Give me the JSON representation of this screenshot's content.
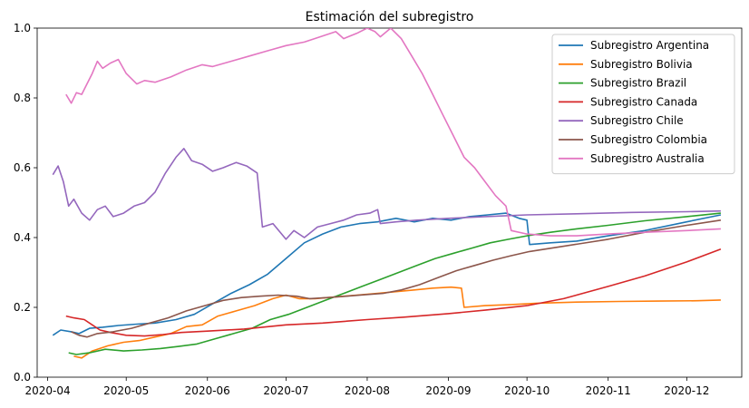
{
  "chart_data": {
    "type": "line",
    "title": "Estimación del subregistro",
    "xlabel": "",
    "ylabel": "",
    "ylim": [
      0,
      1.0
    ],
    "xlim": [
      "2020-03-28",
      "2020-12-22"
    ],
    "x_ticks": [
      "2020-04",
      "2020-05",
      "2020-06",
      "2020-07",
      "2020-08",
      "2020-09",
      "2020-10",
      "2020-11",
      "2020-12"
    ],
    "y_ticks": [
      0.0,
      0.2,
      0.4,
      0.6,
      0.8,
      1.0
    ],
    "y_tick_labels": [
      "0.0",
      "0.2",
      "0.4",
      "0.6",
      "0.8",
      "1.0"
    ],
    "grid": false,
    "legend_position": "top-right",
    "series": [
      {
        "name": "Subregistro Argentina",
        "color": "#1f77b4",
        "points": [
          [
            "2020-04-03",
            0.12
          ],
          [
            "2020-04-06",
            0.135
          ],
          [
            "2020-04-10",
            0.13
          ],
          [
            "2020-04-13",
            0.125
          ],
          [
            "2020-04-17",
            0.14
          ],
          [
            "2020-04-22",
            0.143
          ],
          [
            "2020-04-28",
            0.148
          ],
          [
            "2020-05-05",
            0.152
          ],
          [
            "2020-05-12",
            0.155
          ],
          [
            "2020-05-20",
            0.165
          ],
          [
            "2020-05-27",
            0.18
          ],
          [
            "2020-06-03",
            0.21
          ],
          [
            "2020-06-10",
            0.24
          ],
          [
            "2020-06-17",
            0.265
          ],
          [
            "2020-06-24",
            0.295
          ],
          [
            "2020-07-01",
            0.34
          ],
          [
            "2020-07-08",
            0.385
          ],
          [
            "2020-07-15",
            0.41
          ],
          [
            "2020-07-22",
            0.43
          ],
          [
            "2020-07-29",
            0.44
          ],
          [
            "2020-08-05",
            0.445
          ],
          [
            "2020-08-12",
            0.455
          ],
          [
            "2020-08-19",
            0.445
          ],
          [
            "2020-08-26",
            0.455
          ],
          [
            "2020-09-02",
            0.45
          ],
          [
            "2020-09-09",
            0.46
          ],
          [
            "2020-09-16",
            0.465
          ],
          [
            "2020-09-23",
            0.47
          ],
          [
            "2020-09-28",
            0.455
          ],
          [
            "2020-10-01",
            0.45
          ],
          [
            "2020-10-02",
            0.38
          ],
          [
            "2020-10-10",
            0.385
          ],
          [
            "2020-10-20",
            0.39
          ],
          [
            "2020-11-01",
            0.405
          ],
          [
            "2020-11-15",
            0.42
          ],
          [
            "2020-12-01",
            0.445
          ],
          [
            "2020-12-14",
            0.465
          ]
        ]
      },
      {
        "name": "Subregistro Bolivia",
        "color": "#ff7f0e",
        "points": [
          [
            "2020-04-11",
            0.06
          ],
          [
            "2020-04-14",
            0.055
          ],
          [
            "2020-04-18",
            0.075
          ],
          [
            "2020-04-24",
            0.09
          ],
          [
            "2020-04-30",
            0.1
          ],
          [
            "2020-05-06",
            0.105
          ],
          [
            "2020-05-12",
            0.115
          ],
          [
            "2020-05-18",
            0.125
          ],
          [
            "2020-05-24",
            0.145
          ],
          [
            "2020-05-30",
            0.15
          ],
          [
            "2020-06-05",
            0.175
          ],
          [
            "2020-06-12",
            0.19
          ],
          [
            "2020-06-19",
            0.205
          ],
          [
            "2020-06-26",
            0.225
          ],
          [
            "2020-07-01",
            0.235
          ],
          [
            "2020-07-06",
            0.225
          ],
          [
            "2020-07-12",
            0.225
          ],
          [
            "2020-07-20",
            0.23
          ],
          [
            "2020-07-28",
            0.235
          ],
          [
            "2020-08-05",
            0.24
          ],
          [
            "2020-08-12",
            0.245
          ],
          [
            "2020-08-19",
            0.25
          ],
          [
            "2020-08-26",
            0.255
          ],
          [
            "2020-09-02",
            0.258
          ],
          [
            "2020-09-06",
            0.255
          ],
          [
            "2020-09-07",
            0.2
          ],
          [
            "2020-09-15",
            0.205
          ],
          [
            "2020-09-25",
            0.208
          ],
          [
            "2020-10-05",
            0.212
          ],
          [
            "2020-10-20",
            0.215
          ],
          [
            "2020-11-05",
            0.217
          ],
          [
            "2020-11-20",
            0.218
          ],
          [
            "2020-12-05",
            0.219
          ],
          [
            "2020-12-14",
            0.221
          ]
        ]
      },
      {
        "name": "Subregistro Brazil",
        "color": "#2ca02c",
        "points": [
          [
            "2020-04-09",
            0.07
          ],
          [
            "2020-04-12",
            0.065
          ],
          [
            "2020-04-17",
            0.07
          ],
          [
            "2020-04-23",
            0.08
          ],
          [
            "2020-04-30",
            0.075
          ],
          [
            "2020-05-07",
            0.078
          ],
          [
            "2020-05-14",
            0.082
          ],
          [
            "2020-05-21",
            0.088
          ],
          [
            "2020-05-28",
            0.095
          ],
          [
            "2020-06-04",
            0.11
          ],
          [
            "2020-06-11",
            0.125
          ],
          [
            "2020-06-18",
            0.14
          ],
          [
            "2020-06-25",
            0.165
          ],
          [
            "2020-07-02",
            0.18
          ],
          [
            "2020-07-09",
            0.2
          ],
          [
            "2020-07-16",
            0.22
          ],
          [
            "2020-07-23",
            0.24
          ],
          [
            "2020-07-30",
            0.26
          ],
          [
            "2020-08-06",
            0.28
          ],
          [
            "2020-08-13",
            0.3
          ],
          [
            "2020-08-20",
            0.32
          ],
          [
            "2020-08-27",
            0.34
          ],
          [
            "2020-09-03",
            0.355
          ],
          [
            "2020-09-10",
            0.37
          ],
          [
            "2020-09-17",
            0.385
          ],
          [
            "2020-09-24",
            0.395
          ],
          [
            "2020-10-01",
            0.405
          ],
          [
            "2020-10-10",
            0.415
          ],
          [
            "2020-10-20",
            0.425
          ],
          [
            "2020-11-01",
            0.435
          ],
          [
            "2020-11-15",
            0.448
          ],
          [
            "2020-12-01",
            0.46
          ],
          [
            "2020-12-14",
            0.47
          ]
        ]
      },
      {
        "name": "Subregistro Canada",
        "color": "#d62728",
        "points": [
          [
            "2020-04-08",
            0.175
          ],
          [
            "2020-04-11",
            0.17
          ],
          [
            "2020-04-15",
            0.165
          ],
          [
            "2020-04-18",
            0.15
          ],
          [
            "2020-04-21",
            0.135
          ],
          [
            "2020-04-25",
            0.128
          ],
          [
            "2020-05-01",
            0.12
          ],
          [
            "2020-05-08",
            0.118
          ],
          [
            "2020-05-15",
            0.122
          ],
          [
            "2020-05-22",
            0.128
          ],
          [
            "2020-06-01",
            0.132
          ],
          [
            "2020-06-15",
            0.138
          ],
          [
            "2020-07-01",
            0.15
          ],
          [
            "2020-07-15",
            0.155
          ],
          [
            "2020-08-01",
            0.165
          ],
          [
            "2020-08-15",
            0.172
          ],
          [
            "2020-09-01",
            0.182
          ],
          [
            "2020-09-15",
            0.192
          ],
          [
            "2020-10-01",
            0.205
          ],
          [
            "2020-10-15",
            0.225
          ],
          [
            "2020-11-01",
            0.26
          ],
          [
            "2020-11-15",
            0.29
          ],
          [
            "2020-12-01",
            0.33
          ],
          [
            "2020-12-14",
            0.367
          ]
        ]
      },
      {
        "name": "Subregistro Chile",
        "color": "#9467bd",
        "points": [
          [
            "2020-04-03",
            0.58
          ],
          [
            "2020-04-05",
            0.605
          ],
          [
            "2020-04-07",
            0.56
          ],
          [
            "2020-04-09",
            0.49
          ],
          [
            "2020-04-11",
            0.51
          ],
          [
            "2020-04-14",
            0.47
          ],
          [
            "2020-04-17",
            0.45
          ],
          [
            "2020-04-20",
            0.48
          ],
          [
            "2020-04-23",
            0.49
          ],
          [
            "2020-04-26",
            0.46
          ],
          [
            "2020-04-30",
            0.47
          ],
          [
            "2020-05-04",
            0.49
          ],
          [
            "2020-05-08",
            0.5
          ],
          [
            "2020-05-12",
            0.53
          ],
          [
            "2020-05-16",
            0.585
          ],
          [
            "2020-05-20",
            0.63
          ],
          [
            "2020-05-23",
            0.655
          ],
          [
            "2020-05-26",
            0.62
          ],
          [
            "2020-05-30",
            0.61
          ],
          [
            "2020-06-03",
            0.59
          ],
          [
            "2020-06-07",
            0.6
          ],
          [
            "2020-06-12",
            0.615
          ],
          [
            "2020-06-16",
            0.605
          ],
          [
            "2020-06-20",
            0.585
          ],
          [
            "2020-06-22",
            0.43
          ],
          [
            "2020-06-26",
            0.44
          ],
          [
            "2020-07-01",
            0.395
          ],
          [
            "2020-07-04",
            0.42
          ],
          [
            "2020-07-08",
            0.4
          ],
          [
            "2020-07-13",
            0.43
          ],
          [
            "2020-07-18",
            0.44
          ],
          [
            "2020-07-23",
            0.45
          ],
          [
            "2020-07-28",
            0.465
          ],
          [
            "2020-08-02",
            0.47
          ],
          [
            "2020-08-05",
            0.48
          ],
          [
            "2020-08-06",
            0.44
          ],
          [
            "2020-08-12",
            0.445
          ],
          [
            "2020-08-20",
            0.45
          ],
          [
            "2020-09-01",
            0.455
          ],
          [
            "2020-09-15",
            0.46
          ],
          [
            "2020-10-01",
            0.465
          ],
          [
            "2020-10-20",
            0.468
          ],
          [
            "2020-11-10",
            0.472
          ],
          [
            "2020-12-01",
            0.474
          ],
          [
            "2020-12-14",
            0.476
          ]
        ]
      },
      {
        "name": "Subregistro Colombia",
        "color": "#8c564b",
        "points": [
          [
            "2020-04-10",
            0.13
          ],
          [
            "2020-04-13",
            0.12
          ],
          [
            "2020-04-16",
            0.115
          ],
          [
            "2020-04-20",
            0.125
          ],
          [
            "2020-04-26",
            0.13
          ],
          [
            "2020-05-03",
            0.14
          ],
          [
            "2020-05-10",
            0.155
          ],
          [
            "2020-05-17",
            0.17
          ],
          [
            "2020-05-24",
            0.19
          ],
          [
            "2020-05-31",
            0.205
          ],
          [
            "2020-06-07",
            0.22
          ],
          [
            "2020-06-14",
            0.228
          ],
          [
            "2020-06-21",
            0.232
          ],
          [
            "2020-06-28",
            0.235
          ],
          [
            "2020-07-05",
            0.232
          ],
          [
            "2020-07-10",
            0.225
          ],
          [
            "2020-07-17",
            0.228
          ],
          [
            "2020-07-24",
            0.232
          ],
          [
            "2020-07-31",
            0.236
          ],
          [
            "2020-08-07",
            0.24
          ],
          [
            "2020-08-14",
            0.25
          ],
          [
            "2020-08-21",
            0.265
          ],
          [
            "2020-08-28",
            0.285
          ],
          [
            "2020-09-04",
            0.305
          ],
          [
            "2020-09-11",
            0.32
          ],
          [
            "2020-09-18",
            0.335
          ],
          [
            "2020-09-25",
            0.348
          ],
          [
            "2020-10-02",
            0.36
          ],
          [
            "2020-10-15",
            0.375
          ],
          [
            "2020-11-01",
            0.395
          ],
          [
            "2020-11-15",
            0.415
          ],
          [
            "2020-12-01",
            0.435
          ],
          [
            "2020-12-14",
            0.45
          ]
        ]
      },
      {
        "name": "Subregistro Australia",
        "color": "#e377c2",
        "points": [
          [
            "2020-04-08",
            0.81
          ],
          [
            "2020-04-10",
            0.785
          ],
          [
            "2020-04-12",
            0.815
          ],
          [
            "2020-04-14",
            0.81
          ],
          [
            "2020-04-16",
            0.84
          ],
          [
            "2020-04-18",
            0.87
          ],
          [
            "2020-04-20",
            0.905
          ],
          [
            "2020-04-22",
            0.885
          ],
          [
            "2020-04-25",
            0.9
          ],
          [
            "2020-04-28",
            0.91
          ],
          [
            "2020-05-01",
            0.87
          ],
          [
            "2020-05-05",
            0.84
          ],
          [
            "2020-05-08",
            0.85
          ],
          [
            "2020-05-12",
            0.845
          ],
          [
            "2020-05-18",
            0.86
          ],
          [
            "2020-05-24",
            0.88
          ],
          [
            "2020-05-30",
            0.895
          ],
          [
            "2020-06-03",
            0.89
          ],
          [
            "2020-06-10",
            0.905
          ],
          [
            "2020-06-17",
            0.92
          ],
          [
            "2020-06-24",
            0.935
          ],
          [
            "2020-07-01",
            0.95
          ],
          [
            "2020-07-08",
            0.96
          ],
          [
            "2020-07-14",
            0.975
          ],
          [
            "2020-07-20",
            0.99
          ],
          [
            "2020-07-23",
            0.97
          ],
          [
            "2020-07-28",
            0.985
          ],
          [
            "2020-08-01",
            1.0
          ],
          [
            "2020-08-04",
            0.99
          ],
          [
            "2020-08-06",
            0.975
          ],
          [
            "2020-08-10",
            1.0
          ],
          [
            "2020-08-14",
            0.97
          ],
          [
            "2020-08-18",
            0.92
          ],
          [
            "2020-08-22",
            0.87
          ],
          [
            "2020-08-26",
            0.81
          ],
          [
            "2020-08-30",
            0.75
          ],
          [
            "2020-09-03",
            0.69
          ],
          [
            "2020-09-07",
            0.63
          ],
          [
            "2020-09-11",
            0.6
          ],
          [
            "2020-09-15",
            0.56
          ],
          [
            "2020-09-19",
            0.52
          ],
          [
            "2020-09-23",
            0.49
          ],
          [
            "2020-09-25",
            0.42
          ],
          [
            "2020-10-01",
            0.41
          ],
          [
            "2020-10-10",
            0.405
          ],
          [
            "2020-10-20",
            0.405
          ],
          [
            "2020-11-01",
            0.41
          ],
          [
            "2020-11-15",
            0.415
          ],
          [
            "2020-12-01",
            0.42
          ],
          [
            "2020-12-14",
            0.425
          ]
        ]
      }
    ]
  }
}
